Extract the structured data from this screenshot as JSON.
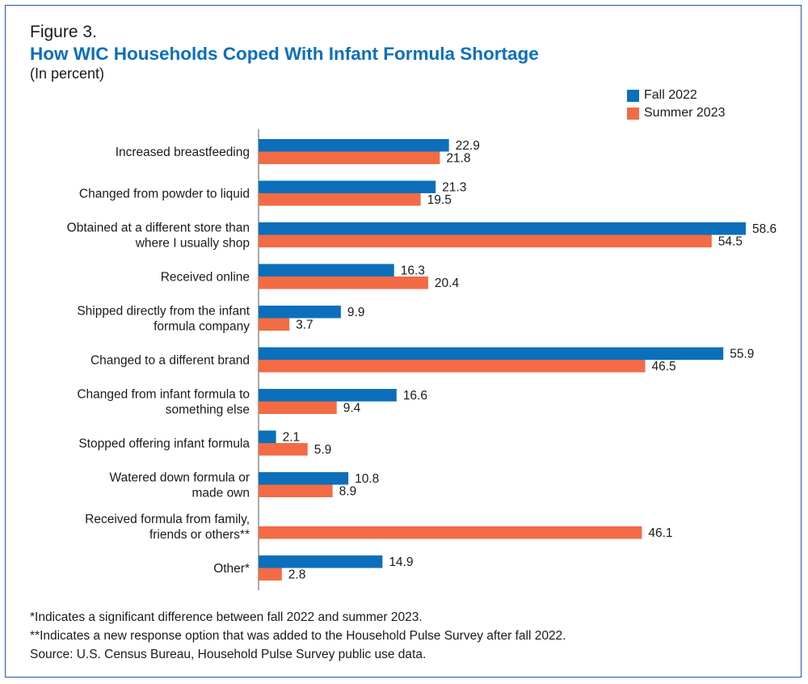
{
  "figure_label": "Figure 3.",
  "title": "How WIC Households Coped With Infant Formula Shortage",
  "subtitle": "(In percent)",
  "colors": {
    "fall_2022": "#0b6fbb",
    "summer_2023": "#f26b45",
    "frame": "#1f5aa6"
  },
  "legend": {
    "fall": "Fall 2022",
    "summer": "Summer 2023"
  },
  "chart_data": {
    "type": "bar",
    "orientation": "horizontal",
    "xlim": [
      0,
      60
    ],
    "categories": [
      [
        "Increased breastfeeding"
      ],
      [
        "Changed from powder to liquid"
      ],
      [
        "Obtained at a different store than",
        "where I usually shop"
      ],
      [
        "Received online"
      ],
      [
        "Shipped directly from the infant",
        "formula company"
      ],
      [
        "Changed to a different brand"
      ],
      [
        "Changed from infant formula to",
        "something else"
      ],
      [
        "Stopped offering infant formula"
      ],
      [
        "Watered down formula or",
        "made own"
      ],
      [
        "Received formula from family,",
        "friends or others**"
      ],
      [
        "Other*"
      ]
    ],
    "series": [
      {
        "name": "Fall 2022",
        "values": [
          22.9,
          21.3,
          58.6,
          16.3,
          9.9,
          55.9,
          16.6,
          2.1,
          10.8,
          null,
          14.9
        ]
      },
      {
        "name": "Summer 2023",
        "values": [
          21.8,
          19.5,
          54.5,
          20.4,
          3.7,
          46.5,
          9.4,
          5.9,
          8.9,
          46.1,
          2.8
        ]
      }
    ]
  },
  "notes": [
    "*Indicates a significant difference between fall 2022 and summer 2023.",
    "**Indicates a new response option that was added to the Household Pulse Survey after fall 2022.",
    "Source: U.S. Census Bureau, Household Pulse Survey public use data."
  ]
}
